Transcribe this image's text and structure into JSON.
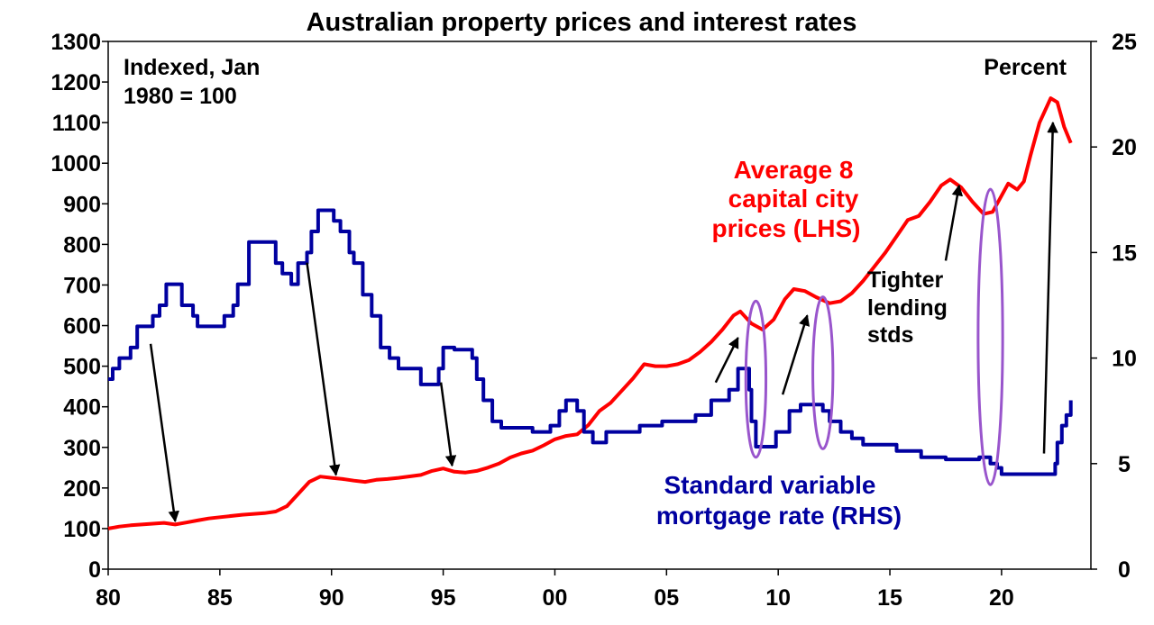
{
  "chart_data": {
    "type": "line",
    "title": "Australian property prices and interest rates",
    "left_axis_label_lines": [
      "Indexed, Jan",
      "1980 = 100"
    ],
    "right_axis_label": "Percent",
    "x_ticks": [
      "80",
      "85",
      "90",
      "95",
      "00",
      "05",
      "10",
      "15",
      "20"
    ],
    "x_tick_years": [
      1980,
      1985,
      1990,
      1995,
      2000,
      2005,
      2010,
      2015,
      2020
    ],
    "xlim": [
      1980,
      2024
    ],
    "ylim_left": [
      0,
      1300
    ],
    "ylim_right": [
      0,
      25
    ],
    "y_left_ticks": [
      0,
      100,
      200,
      300,
      400,
      500,
      600,
      700,
      800,
      900,
      1000,
      1100,
      1200,
      1300
    ],
    "y_right_ticks": [
      0,
      5,
      10,
      15,
      20,
      25
    ],
    "grid": false,
    "series": [
      {
        "name_lines": [
          "Average 8",
          "capital city",
          "prices (LHS)"
        ],
        "axis": "left",
        "color": "#ff0000",
        "step": false,
        "points": [
          [
            1980.0,
            100
          ],
          [
            1980.5,
            105
          ],
          [
            1981.0,
            108
          ],
          [
            1981.5,
            110
          ],
          [
            1982.0,
            112
          ],
          [
            1982.5,
            114
          ],
          [
            1983.0,
            110
          ],
          [
            1983.5,
            115
          ],
          [
            1984.0,
            120
          ],
          [
            1984.5,
            125
          ],
          [
            1985.0,
            128
          ],
          [
            1986.0,
            134
          ],
          [
            1987.0,
            138
          ],
          [
            1987.5,
            142
          ],
          [
            1988.0,
            155
          ],
          [
            1988.5,
            185
          ],
          [
            1989.0,
            215
          ],
          [
            1989.5,
            228
          ],
          [
            1990.0,
            225
          ],
          [
            1990.5,
            222
          ],
          [
            1991.0,
            218
          ],
          [
            1991.5,
            215
          ],
          [
            1992.0,
            220
          ],
          [
            1992.5,
            222
          ],
          [
            1993.0,
            225
          ],
          [
            1994.0,
            232
          ],
          [
            1994.5,
            242
          ],
          [
            1995.0,
            248
          ],
          [
            1995.5,
            240
          ],
          [
            1996.0,
            238
          ],
          [
            1996.5,
            242
          ],
          [
            1997.0,
            250
          ],
          [
            1997.5,
            260
          ],
          [
            1998.0,
            275
          ],
          [
            1998.5,
            285
          ],
          [
            1999.0,
            292
          ],
          [
            1999.5,
            305
          ],
          [
            2000.0,
            320
          ],
          [
            2000.5,
            328
          ],
          [
            2001.0,
            332
          ],
          [
            2001.5,
            355
          ],
          [
            2002.0,
            390
          ],
          [
            2002.5,
            410
          ],
          [
            2003.0,
            440
          ],
          [
            2003.5,
            470
          ],
          [
            2004.0,
            505
          ],
          [
            2004.5,
            500
          ],
          [
            2005.0,
            500
          ],
          [
            2005.5,
            505
          ],
          [
            2006.0,
            515
          ],
          [
            2006.5,
            535
          ],
          [
            2007.0,
            560
          ],
          [
            2007.5,
            590
          ],
          [
            2008.0,
            625
          ],
          [
            2008.3,
            635
          ],
          [
            2008.8,
            605
          ],
          [
            2009.3,
            590
          ],
          [
            2009.8,
            615
          ],
          [
            2010.3,
            665
          ],
          [
            2010.7,
            690
          ],
          [
            2011.2,
            685
          ],
          [
            2011.7,
            670
          ],
          [
            2012.3,
            655
          ],
          [
            2012.8,
            660
          ],
          [
            2013.3,
            680
          ],
          [
            2013.8,
            710
          ],
          [
            2014.3,
            745
          ],
          [
            2014.8,
            780
          ],
          [
            2015.3,
            820
          ],
          [
            2015.8,
            860
          ],
          [
            2016.3,
            870
          ],
          [
            2016.8,
            905
          ],
          [
            2017.3,
            945
          ],
          [
            2017.7,
            960
          ],
          [
            2018.2,
            940
          ],
          [
            2018.7,
            905
          ],
          [
            2019.2,
            875
          ],
          [
            2019.6,
            880
          ],
          [
            2020.0,
            920
          ],
          [
            2020.3,
            950
          ],
          [
            2020.7,
            935
          ],
          [
            2021.0,
            955
          ],
          [
            2021.3,
            1020
          ],
          [
            2021.7,
            1100
          ],
          [
            2022.2,
            1160
          ],
          [
            2022.5,
            1150
          ],
          [
            2022.8,
            1090
          ],
          [
            2023.1,
            1050
          ]
        ]
      },
      {
        "name_lines": [
          "Standard variable",
          "mortgage rate (RHS)"
        ],
        "axis": "right",
        "color": "#0000a0",
        "step": true,
        "points": [
          [
            1980.0,
            9.0
          ],
          [
            1980.2,
            9.5
          ],
          [
            1980.5,
            10.0
          ],
          [
            1981.0,
            10.5
          ],
          [
            1981.3,
            11.5
          ],
          [
            1982.0,
            12.0
          ],
          [
            1982.3,
            12.5
          ],
          [
            1982.6,
            13.5
          ],
          [
            1983.3,
            12.5
          ],
          [
            1983.8,
            12.0
          ],
          [
            1984.0,
            11.5
          ],
          [
            1985.2,
            12.0
          ],
          [
            1985.6,
            12.5
          ],
          [
            1985.8,
            13.5
          ],
          [
            1986.3,
            15.5
          ],
          [
            1987.5,
            14.5
          ],
          [
            1987.8,
            14.0
          ],
          [
            1988.2,
            13.5
          ],
          [
            1988.5,
            14.5
          ],
          [
            1988.9,
            15.0
          ],
          [
            1989.1,
            16.0
          ],
          [
            1989.4,
            17.0
          ],
          [
            1990.1,
            16.5
          ],
          [
            1990.4,
            16.0
          ],
          [
            1990.8,
            15.0
          ],
          [
            1991.0,
            14.5
          ],
          [
            1991.4,
            13.0
          ],
          [
            1991.8,
            12.0
          ],
          [
            1992.2,
            10.5
          ],
          [
            1992.6,
            10.0
          ],
          [
            1993.0,
            9.5
          ],
          [
            1994.0,
            8.75
          ],
          [
            1994.8,
            9.5
          ],
          [
            1995.0,
            10.5
          ],
          [
            1995.5,
            10.4
          ],
          [
            1996.3,
            10.0
          ],
          [
            1996.5,
            9.0
          ],
          [
            1996.8,
            8.0
          ],
          [
            1997.2,
            7.0
          ],
          [
            1997.6,
            6.7
          ],
          [
            1999.0,
            6.5
          ],
          [
            1999.8,
            6.8
          ],
          [
            2000.2,
            7.5
          ],
          [
            2000.5,
            8.0
          ],
          [
            2001.0,
            7.5
          ],
          [
            2001.3,
            6.5
          ],
          [
            2001.7,
            6.0
          ],
          [
            2002.3,
            6.5
          ],
          [
            2003.8,
            6.8
          ],
          [
            2004.8,
            7.0
          ],
          [
            2006.3,
            7.3
          ],
          [
            2007.0,
            8.0
          ],
          [
            2007.8,
            8.5
          ],
          [
            2008.2,
            9.5
          ],
          [
            2008.7,
            8.5
          ],
          [
            2008.8,
            7.0
          ],
          [
            2009.0,
            5.8
          ],
          [
            2009.9,
            6.5
          ],
          [
            2010.5,
            7.5
          ],
          [
            2011.0,
            7.8
          ],
          [
            2012.0,
            7.5
          ],
          [
            2012.3,
            7.0
          ],
          [
            2012.8,
            6.5
          ],
          [
            2013.3,
            6.2
          ],
          [
            2013.8,
            5.9
          ],
          [
            2015.3,
            5.6
          ],
          [
            2016.0,
            5.6
          ],
          [
            2016.4,
            5.3
          ],
          [
            2017.5,
            5.2
          ],
          [
            2019.0,
            5.3
          ],
          [
            2019.5,
            5.0
          ],
          [
            2019.8,
            4.8
          ],
          [
            2020.0,
            4.5
          ],
          [
            2022.2,
            4.5
          ],
          [
            2022.4,
            5.0
          ],
          [
            2022.5,
            6.0
          ],
          [
            2022.7,
            6.8
          ],
          [
            2022.9,
            7.3
          ],
          [
            2023.1,
            8.0
          ]
        ]
      }
    ],
    "annotations": [
      {
        "text_lines": [
          "Tighter",
          "lending",
          "stds"
        ]
      }
    ],
    "arrows": [
      {
        "from": [
          1981.9,
          555
        ],
        "to": [
          1983.0,
          118
        ]
      },
      {
        "from": [
          1988.9,
          755
        ],
        "to": [
          1990.2,
          232
        ]
      },
      {
        "from": [
          1994.9,
          460
        ],
        "to": [
          1995.4,
          255
        ]
      },
      {
        "from": [
          2007.2,
          460
        ],
        "to": [
          2008.2,
          570
        ]
      },
      {
        "from": [
          2010.2,
          430
        ],
        "to": [
          2011.3,
          625
        ]
      },
      {
        "from": [
          2017.5,
          760
        ],
        "to": [
          2018.1,
          945
        ]
      },
      {
        "from": [
          2021.9,
          285
        ],
        "to": [
          2022.3,
          1100
        ]
      }
    ],
    "ellipses": [
      {
        "center": [
          2009.0,
          9.0
        ],
        "rx": 0.45,
        "ry": 3.7
      },
      {
        "center": [
          2012.0,
          9.3
        ],
        "rx": 0.45,
        "ry": 3.6
      },
      {
        "center": [
          2019.5,
          11.0
        ],
        "rx": 0.55,
        "ry": 7.0
      }
    ],
    "ellipse_color": "#9955cc"
  }
}
